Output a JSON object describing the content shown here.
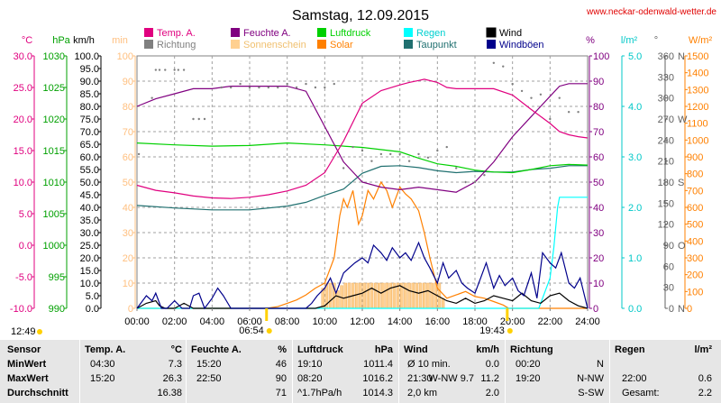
{
  "header": {
    "title": "Samstag, 12.09.2015",
    "site": "www.neckar-odenwald-wetter.de"
  },
  "chart_data": {
    "type": "line",
    "x_range": [
      0,
      24
    ],
    "x_ticks": [
      "00:00",
      "02:00",
      "04:00",
      "06:00",
      "08:00",
      "10:00",
      "12:00",
      "14:00",
      "16:00",
      "18:00",
      "20:00",
      "22:00",
      "24:00"
    ],
    "sun_events": {
      "sunrise": "06:54",
      "sunset": "19:43",
      "daylength": "12:49",
      "sunrise_hour": 6.9,
      "sunset_hour": 19.72
    },
    "legend": [
      {
        "label": "Temp. A.",
        "color": "#e0007f"
      },
      {
        "label": "Feuchte A.",
        "color": "#800080"
      },
      {
        "label": "Luftdruck",
        "color": "#00d000"
      },
      {
        "label": "Regen",
        "color": "#00ffff"
      },
      {
        "label": "Wind",
        "color": "#000000"
      },
      {
        "label": "Richtung",
        "color": "#808080"
      },
      {
        "label": "Sonnenschein",
        "color": "#ffd090"
      },
      {
        "label": "Solar",
        "color": "#ff8000"
      },
      {
        "label": "Taupunkt",
        "color": "#207070"
      },
      {
        "label": "Windböen",
        "color": "#00008b"
      }
    ],
    "axes": {
      "temp": {
        "unit": "°C",
        "color": "#e0007f",
        "min": -10,
        "max": 30,
        "ticks": [
          "-10.0",
          "-5.0",
          "0.0",
          "5.0",
          "10.0",
          "15.0",
          "20.0",
          "25.0",
          "30.0"
        ]
      },
      "pressure": {
        "unit": "hPa",
        "color": "#00a000",
        "min": 990,
        "max": 1030,
        "ticks": [
          "990",
          "995",
          "1000",
          "1005",
          "1010",
          "1015",
          "1020",
          "1025",
          "1030"
        ]
      },
      "wind": {
        "unit": "km/h",
        "color": "#000000",
        "min": 0,
        "max": 100,
        "ticks": [
          "0.0",
          "5.0",
          "10.0",
          "15.0",
          "20.0",
          "25.0",
          "30.0",
          "35.0",
          "40.0",
          "45.0",
          "50.0",
          "55.0",
          "60.0",
          "65.0",
          "70.0",
          "75.0",
          "80.0",
          "85.0",
          "90.0",
          "95.0",
          "100.0"
        ]
      },
      "sun_min": {
        "unit": "min",
        "color": "#ffc080",
        "min": 0,
        "max": 100,
        "ticks": [
          "0",
          "10",
          "20",
          "30",
          "40",
          "50",
          "60",
          "70",
          "80",
          "90",
          "100"
        ]
      },
      "humidity": {
        "unit": "%",
        "color": "#800080",
        "min": 0,
        "max": 100,
        "ticks": [
          "0",
          "10",
          "20",
          "30",
          "40",
          "50",
          "60",
          "70",
          "80",
          "90",
          "100"
        ]
      },
      "rain": {
        "unit": "l/m²",
        "color": "#00c8c8",
        "min": 0,
        "max": 5,
        "ticks": [
          "0.0",
          "1.0",
          "2.0",
          "3.0",
          "4.0",
          "5.0"
        ]
      },
      "direction": {
        "unit": "°",
        "color": "#606060",
        "min": 0,
        "max": 360,
        "ticks": [
          "0",
          "30",
          "60",
          "90",
          "120",
          "150",
          "180",
          "210",
          "240",
          "270",
          "300",
          "330",
          "360"
        ],
        "compass": [
          {
            "deg": 0,
            "label": "N"
          },
          {
            "deg": 90,
            "label": "O"
          },
          {
            "deg": 180,
            "label": "S"
          },
          {
            "deg": 270,
            "label": "W"
          },
          {
            "deg": 360,
            "label": "N"
          }
        ]
      },
      "solar": {
        "unit": "W/m²",
        "color": "#ff8000",
        "min": 0,
        "max": 1500,
        "ticks": [
          "0",
          "100",
          "200",
          "300",
          "400",
          "500",
          "600",
          "700",
          "800",
          "900",
          "1000",
          "1100",
          "1200",
          "1300",
          "1400",
          "1500"
        ]
      }
    },
    "series": [
      {
        "name": "Temp. A.",
        "color": "#e0007f",
        "axis": "temp",
        "x": [
          0,
          1,
          2,
          3,
          4,
          5,
          6,
          7,
          8,
          9,
          10,
          11,
          12,
          13,
          14,
          14.5,
          15,
          15.3,
          16,
          16.5,
          17,
          18,
          19,
          20,
          21,
          22,
          22.5,
          23,
          23.5,
          24
        ],
        "y": [
          9.5,
          8.7,
          8.3,
          7.8,
          7.5,
          7.4,
          7.6,
          8.0,
          8.6,
          9.5,
          11.5,
          16.5,
          22.5,
          24.5,
          25.4,
          25.8,
          26.1,
          26.3,
          25.8,
          25.0,
          24.8,
          24.8,
          24.8,
          23.8,
          21.5,
          19.3,
          18.0,
          17.5,
          17.2,
          17.0
        ]
      },
      {
        "name": "Feuchte A.",
        "color": "#800080",
        "axis": "humidity",
        "x": [
          0,
          1,
          2,
          3,
          4,
          5,
          6,
          7,
          8,
          9,
          10,
          11,
          12,
          13,
          14,
          15,
          16,
          17,
          18,
          19,
          20,
          21,
          21.5,
          22,
          22.5,
          23,
          23.5,
          24
        ],
        "y": [
          80,
          83,
          85,
          87,
          87,
          88,
          88,
          88,
          88,
          86,
          72,
          58,
          50,
          48,
          47,
          48,
          47,
          46,
          50,
          58,
          68,
          76,
          80,
          84,
          88,
          89,
          89,
          89
        ]
      },
      {
        "name": "Taupunkt",
        "color": "#207070",
        "axis": "temp",
        "x": [
          0,
          2,
          4,
          6,
          8,
          9,
          10,
          11,
          12,
          13,
          14,
          15,
          16,
          17,
          18,
          19,
          20,
          21,
          22,
          23,
          24
        ],
        "y": [
          6.3,
          5.9,
          5.6,
          5.6,
          6.2,
          6.8,
          7.9,
          8.9,
          11.4,
          12.5,
          12.6,
          12.3,
          11.8,
          11.5,
          11.7,
          11.6,
          11.6,
          12.0,
          12.2,
          12.6,
          12.6
        ]
      },
      {
        "name": "Luftdruck",
        "color": "#00d000",
        "axis": "pressure",
        "x": [
          0,
          2,
          4,
          6,
          8,
          10,
          12,
          14,
          15,
          16,
          17,
          18,
          19,
          20,
          21,
          22,
          23,
          24
        ],
        "y": [
          1016.2,
          1015.9,
          1015.7,
          1015.8,
          1016.2,
          1015.9,
          1015.5,
          1014.8,
          1013.8,
          1012.9,
          1012.5,
          1011.9,
          1011.6,
          1011.5,
          1012.0,
          1012.6,
          1012.8,
          1012.7
        ]
      },
      {
        "name": "Regen",
        "color": "#00ffff",
        "axis": "rain",
        "x": [
          0,
          21.4,
          21.6,
          21.8,
          22.0,
          22.2,
          22.4,
          22.5,
          22.6,
          24
        ],
        "y": [
          0,
          0,
          0.2,
          0.4,
          0.6,
          1.2,
          2.0,
          2.2,
          2.2,
          2.2
        ]
      },
      {
        "name": "Solar",
        "color": "#ff8000",
        "axis": "solar",
        "x": [
          0,
          6.9,
          7.5,
          8,
          8.5,
          9,
          9.5,
          10,
          10.5,
          10.8,
          11,
          11.2,
          11.5,
          11.8,
          12,
          12.3,
          12.6,
          13,
          13.3,
          13.6,
          14,
          14.3,
          14.6,
          15,
          15.3,
          15.6,
          16,
          16.5,
          17,
          17.5,
          18,
          18.5,
          19,
          19.5,
          19.8,
          24
        ],
        "y": [
          0,
          0,
          10,
          30,
          50,
          80,
          120,
          150,
          300,
          550,
          650,
          600,
          700,
          500,
          550,
          700,
          650,
          750,
          700,
          600,
          720,
          680,
          650,
          580,
          450,
          300,
          120,
          60,
          80,
          100,
          70,
          60,
          40,
          20,
          0,
          0
        ]
      },
      {
        "name": "Wind",
        "color": "#000000",
        "axis": "wind",
        "x": [
          0,
          0.5,
          1,
          1.2,
          1.5,
          2,
          2.5,
          3,
          3.5,
          4,
          4.5,
          5,
          5.5,
          6,
          6.5,
          7,
          7.5,
          8,
          8.5,
          9,
          9.5,
          10,
          10.3,
          10.6,
          11,
          11.5,
          12,
          12.5,
          13,
          13.5,
          14,
          14.5,
          15,
          15.5,
          16,
          16.5,
          17,
          17.5,
          18,
          18.5,
          19,
          19.5,
          20,
          20.5,
          21,
          21.5,
          22,
          22.5,
          23,
          23.5,
          24
        ],
        "y": [
          0,
          2,
          3,
          1,
          0,
          0,
          2,
          0,
          0,
          0,
          0,
          0,
          0,
          0,
          0,
          0,
          0,
          0,
          0,
          0,
          0,
          1,
          3,
          5,
          4,
          5,
          6,
          8,
          6,
          8,
          9,
          7,
          6,
          7,
          5,
          3,
          2,
          4,
          2,
          3,
          5,
          4,
          3,
          6,
          3,
          2,
          5,
          6,
          3,
          1,
          0
        ]
      },
      {
        "name": "Windböen",
        "color": "#00008b",
        "axis": "wind",
        "x": [
          0,
          0.5,
          0.8,
          1,
          1.3,
          1.6,
          2,
          2.4,
          2.8,
          3,
          3.3,
          3.6,
          4,
          4.3,
          4.6,
          5,
          5.5,
          6,
          6.5,
          7,
          7.5,
          8,
          8.5,
          9,
          9.3,
          9.6,
          10,
          10.3,
          10.6,
          11,
          11.3,
          11.6,
          12,
          12.3,
          12.6,
          13,
          13.3,
          13.6,
          14,
          14.3,
          14.6,
          15,
          15.3,
          15.6,
          16,
          16.3,
          16.6,
          17,
          17.3,
          17.6,
          18,
          18.3,
          18.6,
          19,
          19.3,
          19.6,
          20,
          20.3,
          20.6,
          21,
          21.3,
          21.6,
          22,
          22.3,
          22.6,
          23,
          23.3,
          23.6,
          24
        ],
        "y": [
          0,
          5,
          3,
          6,
          0,
          0,
          3,
          0,
          0,
          5,
          6,
          0,
          4,
          8,
          5,
          0,
          0,
          0,
          0,
          0,
          0,
          0,
          0,
          0,
          2,
          5,
          8,
          12,
          6,
          14,
          16,
          18,
          20,
          18,
          25,
          22,
          19,
          24,
          20,
          22,
          19,
          26,
          20,
          16,
          10,
          18,
          12,
          15,
          10,
          8,
          6,
          12,
          18,
          8,
          13,
          9,
          12,
          7,
          5,
          14,
          4,
          22,
          18,
          16,
          22,
          10,
          8,
          12,
          0
        ]
      },
      {
        "name": "Sonnenschein",
        "color": "#ffd090",
        "axis": "sun_min",
        "x": [
          9.9,
          10.1,
          10.3,
          10.5,
          10.7,
          10.9,
          11.1,
          11.3,
          11.5,
          11.7,
          11.9,
          12.1,
          12.3,
          12.5,
          12.7,
          12.9,
          13.1,
          13.3,
          13.5,
          13.7,
          13.9,
          14.1,
          14.3,
          14.5,
          14.7,
          14.9,
          15.1,
          15.3,
          15.5,
          15.7,
          15.9,
          16.1,
          16.3
        ],
        "y": [
          8,
          10,
          10,
          10,
          7,
          9,
          10,
          10,
          10,
          10,
          10,
          10,
          10,
          10,
          10,
          10,
          10,
          10,
          10,
          10,
          10,
          10,
          10,
          10,
          10,
          10,
          10,
          10,
          10,
          10,
          10,
          10,
          4
        ]
      },
      {
        "name": "Richtung",
        "color": "#808080",
        "axis": "direction",
        "x": [
          0.1,
          0.8,
          1.0,
          1.2,
          1.5,
          2.0,
          2.2,
          2.5,
          3.0,
          3.3,
          3.6,
          4.5,
          5.0,
          5.5,
          6.0,
          6.5,
          7.0,
          7.5,
          8.0,
          8.5,
          9.0,
          9.5,
          10.0,
          10.5,
          11,
          11.5,
          12,
          12.5,
          13,
          13.5,
          14,
          14.5,
          15,
          15.5,
          16,
          16.5,
          17,
          17.5,
          18,
          18.5,
          19,
          19.5,
          20,
          20.5,
          21,
          21.5,
          22,
          22.5,
          23,
          23.5
        ],
        "y": [
          220,
          300,
          340,
          340,
          340,
          340,
          340,
          340,
          270,
          270,
          270,
          315,
          315,
          320,
          315,
          315,
          315,
          315,
          320,
          315,
          320,
          315,
          315,
          320,
          200,
          230,
          225,
          210,
          220,
          220,
          220,
          210,
          220,
          215,
          225,
          230,
          200,
          180,
          180,
          190,
          350,
          345,
          320,
          310,
          300,
          305,
          270,
          300,
          280,
          280
        ]
      }
    ]
  },
  "stats_table": {
    "headers": {
      "sensor": "Sensor",
      "temp": "Temp. A.",
      "temp_unit": "°C",
      "hum": "Feuchte A.",
      "hum_unit": "%",
      "press": "Luftdruck",
      "press_unit": "hPa",
      "wind": "Wind",
      "wind_unit": "km/h",
      "dir": "Richtung",
      "rain": "Regen",
      "rain_unit": "l/m²"
    },
    "rows": [
      {
        "label": "MinWert",
        "temp_time": "04:30",
        "temp_val": "7.3",
        "hum_time": "15:20",
        "hum_val": "46",
        "press_time": "19:10",
        "press_val": "1011.4",
        "wind_a": "Ø 10 min.",
        "wind_b": "",
        "wind_val": "0.0",
        "dir_time": "00:20",
        "dir_val": "N",
        "rain_a": "",
        "rain_val": ""
      },
      {
        "label": "MaxWert",
        "temp_time": "15:20",
        "temp_val": "26.3",
        "hum_time": "22:50",
        "hum_val": "90",
        "press_time": "08:20",
        "press_val": "1016.2",
        "wind_a": "21:30",
        "wind_b": "W-NW 9.7",
        "wind_val": "11.2",
        "dir_time": "19:20",
        "dir_val": "N-NW",
        "rain_a": "22:00",
        "rain_val": "0.6"
      },
      {
        "label": "Durchschnitt",
        "temp_time": "",
        "temp_val": "16.38",
        "hum_time": "",
        "hum_val": "71",
        "press_time": "^1.7hPa/h",
        "press_val": "1014.3",
        "wind_a": "2,0 km",
        "wind_b": "",
        "wind_val": "2.0",
        "dir_time": "",
        "dir_val": "S-SW",
        "rain_a": "Gesamt:",
        "rain_val": "2.2"
      }
    ]
  }
}
